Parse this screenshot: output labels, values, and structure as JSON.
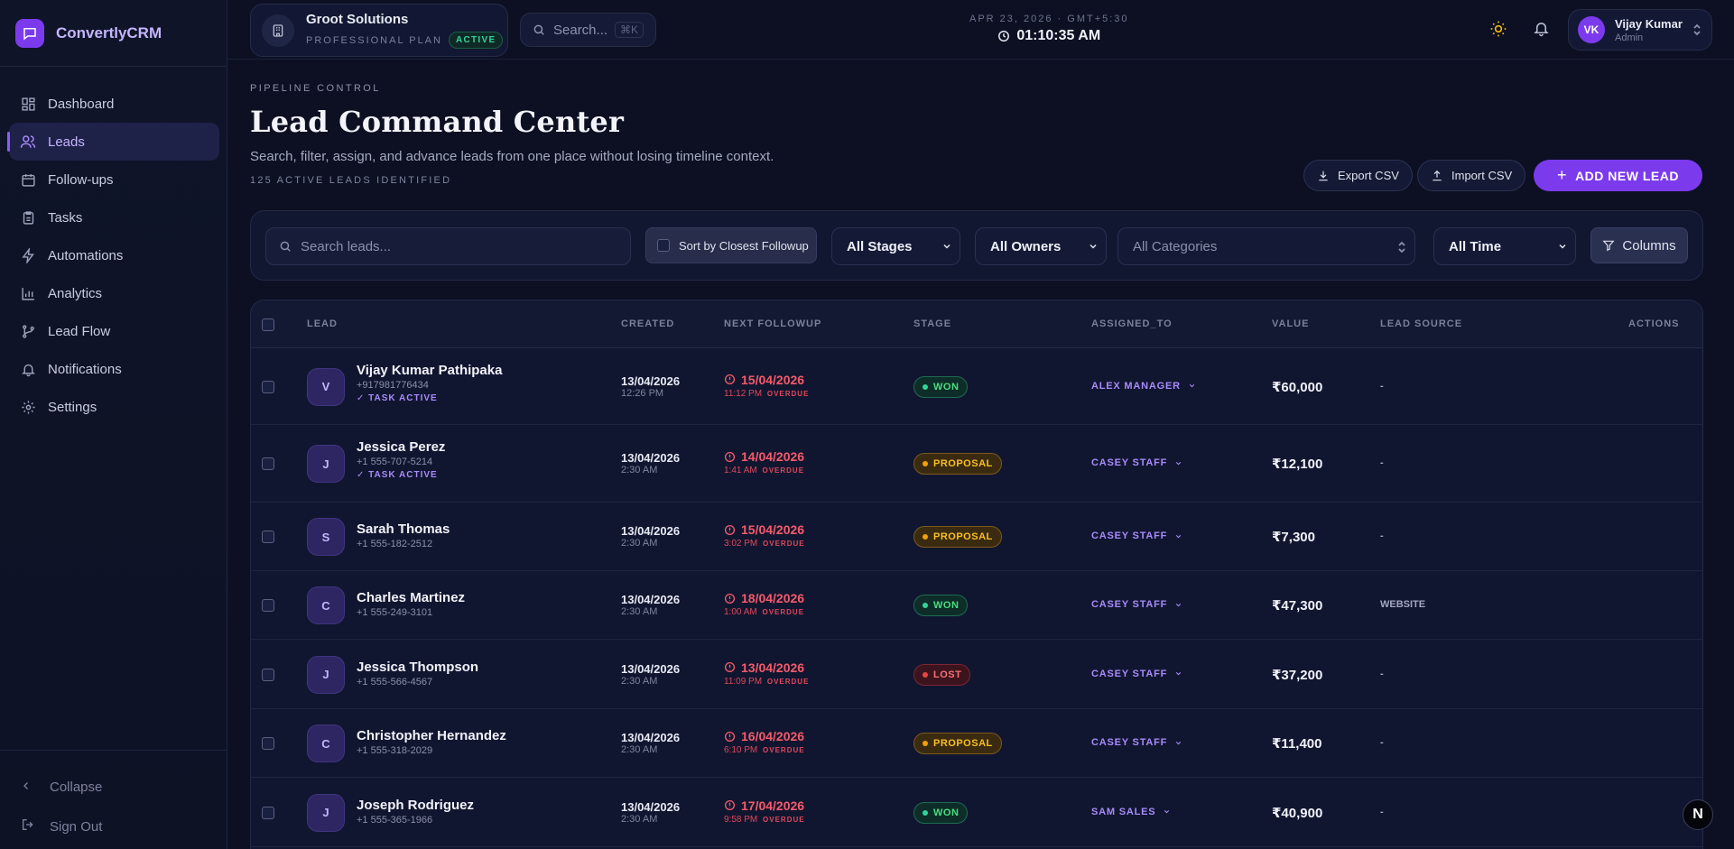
{
  "brand": {
    "name": "ConvertlyCRM"
  },
  "sidebar": {
    "items": [
      {
        "label": "Dashboard"
      },
      {
        "label": "Leads"
      },
      {
        "label": "Follow-ups"
      },
      {
        "label": "Tasks"
      },
      {
        "label": "Automations"
      },
      {
        "label": "Analytics"
      },
      {
        "label": "Lead Flow"
      },
      {
        "label": "Notifications"
      },
      {
        "label": "Settings"
      }
    ],
    "active": "Leads",
    "collapse_label": "Collapse",
    "signout_label": "Sign Out"
  },
  "topbar": {
    "org_name": "Groot Solutions",
    "org_plan": "PROFESSIONAL PLAN",
    "org_status": "ACTIVE",
    "search_placeholder": "Search...",
    "search_shortcut": "⌘K",
    "date": "APR 23, 2026 · GMT+5:30",
    "time": "01:10:35 AM",
    "user_initials": "VK",
    "user_name": "Vijay Kumar",
    "user_role": "Admin"
  },
  "page": {
    "kicker": "PIPELINE CONTROL",
    "title": "Lead Command Center",
    "subtitle": "Search, filter, assign, and advance leads from one place without losing timeline context.",
    "lead_count": "125 ACTIVE LEADS IDENTIFIED",
    "export_label": "Export CSV",
    "import_label": "Import CSV",
    "add_label": "ADD NEW LEAD"
  },
  "filters": {
    "search_placeholder": "Search leads...",
    "sort_label": "Sort by Closest Followup",
    "stage": "All Stages",
    "owner": "All Owners",
    "category": "All Categories",
    "time": "All Time",
    "columns_label": "Columns"
  },
  "table": {
    "headers": [
      "LEAD",
      "CREATED",
      "NEXT FOLLOWUP",
      "STAGE",
      "ASSIGNED_TO",
      "VALUE",
      "LEAD SOURCE",
      "ACTIONS"
    ],
    "overdue_label": "OVERDUE",
    "task_label": "TASK ACTIVE",
    "rows": [
      {
        "initial": "V",
        "name": "Vijay Kumar Pathipaka",
        "phone": "+917981776434",
        "task": "✓ TASK ACTIVE",
        "created_date": "13/04/2026",
        "created_time": "12:26 PM",
        "followup_date": "15/04/2026",
        "followup_time": "11:12 PM",
        "stage": "WON",
        "assigned": "ALEX MANAGER",
        "value": "₹60,000",
        "source": "-"
      },
      {
        "initial": "J",
        "name": "Jessica Perez",
        "phone": "+1 555-707-5214",
        "task": "✓ TASK ACTIVE",
        "created_date": "13/04/2026",
        "created_time": "2:30 AM",
        "followup_date": "14/04/2026",
        "followup_time": "1:41 AM",
        "stage": "PROPOSAL",
        "assigned": "CASEY STAFF",
        "value": "₹12,100",
        "source": "-"
      },
      {
        "initial": "S",
        "name": "Sarah Thomas",
        "phone": "+1 555-182-2512",
        "task": "",
        "created_date": "13/04/2026",
        "created_time": "2:30 AM",
        "followup_date": "15/04/2026",
        "followup_time": "3:02 PM",
        "stage": "PROPOSAL",
        "assigned": "CASEY STAFF",
        "value": "₹7,300",
        "source": "-"
      },
      {
        "initial": "C",
        "name": "Charles Martinez",
        "phone": "+1 555-249-3101",
        "task": "",
        "created_date": "13/04/2026",
        "created_time": "2:30 AM",
        "followup_date": "18/04/2026",
        "followup_time": "1:00 AM",
        "stage": "WON",
        "assigned": "CASEY STAFF",
        "value": "₹47,300",
        "source": "WEBSITE"
      },
      {
        "initial": "J",
        "name": "Jessica Thompson",
        "phone": "+1 555-566-4567",
        "task": "",
        "created_date": "13/04/2026",
        "created_time": "2:30 AM",
        "followup_date": "13/04/2026",
        "followup_time": "11:09 PM",
        "stage": "LOST",
        "assigned": "CASEY STAFF",
        "value": "₹37,200",
        "source": "-"
      },
      {
        "initial": "C",
        "name": "Christopher Hernandez",
        "phone": "+1 555-318-2029",
        "task": "",
        "created_date": "13/04/2026",
        "created_time": "2:30 AM",
        "followup_date": "16/04/2026",
        "followup_time": "6:10 PM",
        "stage": "PROPOSAL",
        "assigned": "CASEY STAFF",
        "value": "₹11,400",
        "source": "-"
      },
      {
        "initial": "J",
        "name": "Joseph Rodriguez",
        "phone": "+1 555-365-1966",
        "task": "",
        "created_date": "13/04/2026",
        "created_time": "2:30 AM",
        "followup_date": "17/04/2026",
        "followup_time": "9:58 PM",
        "stage": "WON",
        "assigned": "SAM SALES",
        "value": "₹40,900",
        "source": "-"
      }
    ]
  },
  "fab_label": "N",
  "colors": {
    "accent": "#7c3aed",
    "background": "#0c1022",
    "won": "#34d399",
    "proposal": "#f59e0b",
    "lost": "#ef4444",
    "overdue": "#f45b6b"
  }
}
